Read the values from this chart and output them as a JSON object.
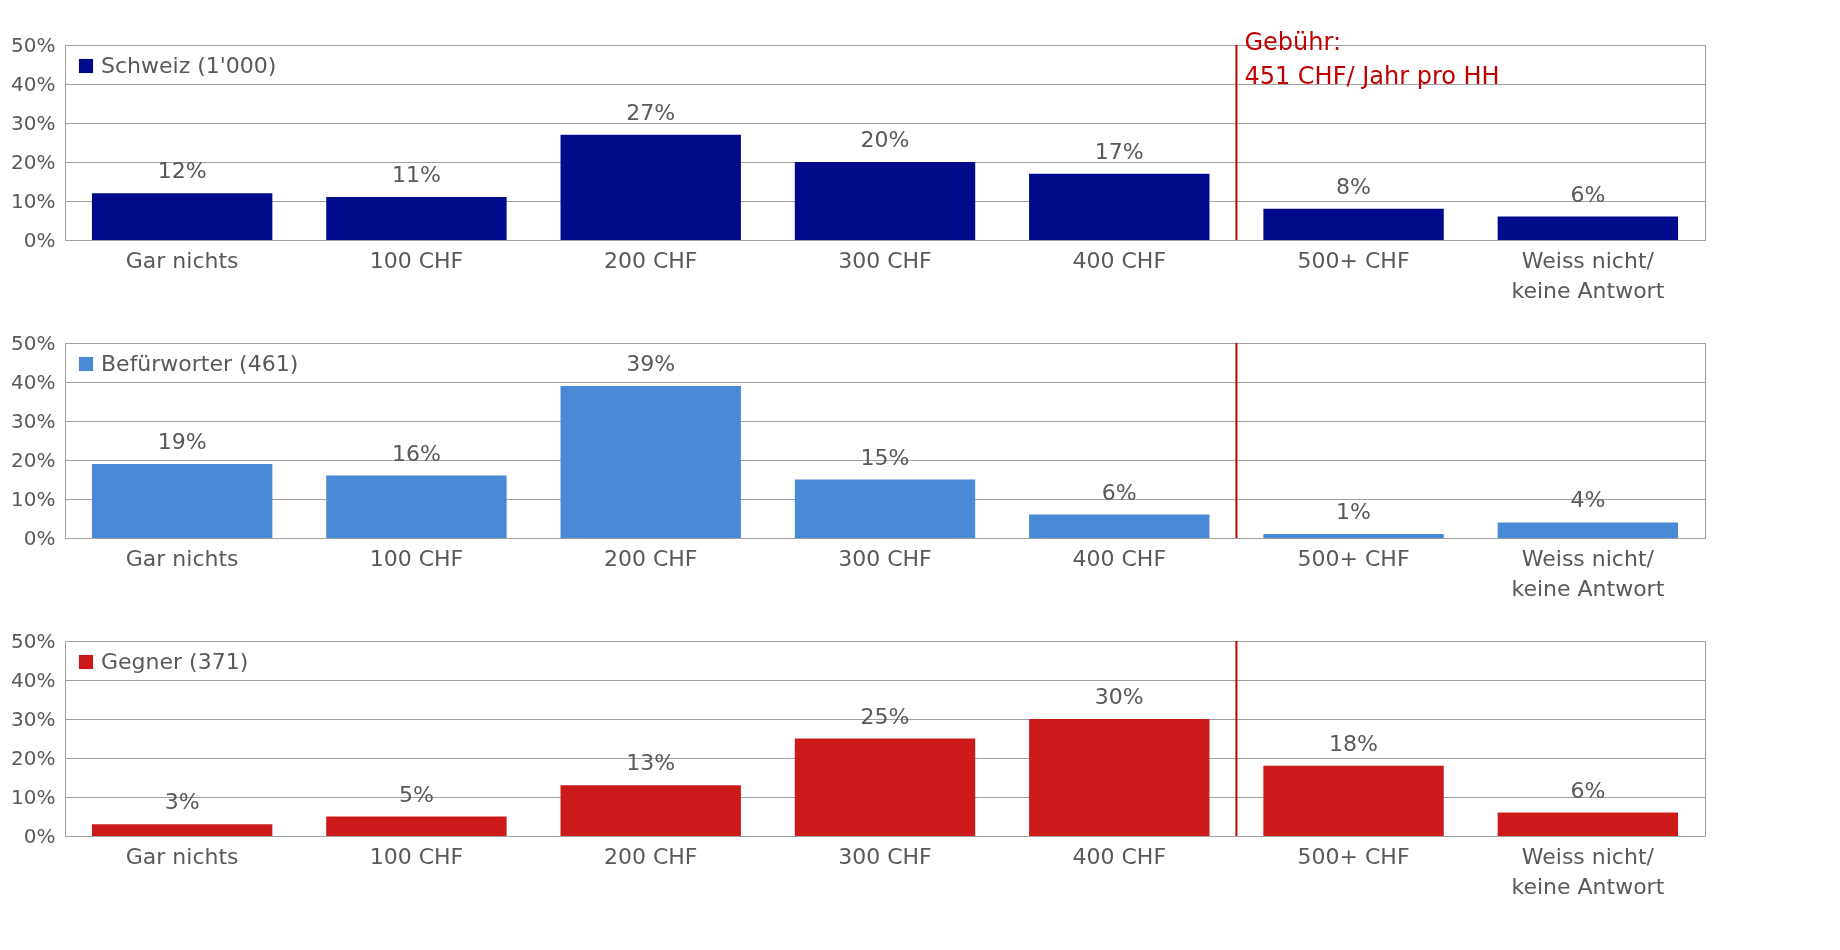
{
  "chart_data": [
    {
      "type": "bar",
      "categories": [
        "Gar nichts",
        "100 CHF",
        "200 CHF",
        "300 CHF",
        "400 CHF",
        "500+ CHF",
        "Weiss nicht/ keine Antwort"
      ],
      "series": [
        {
          "name": "Schweiz (1'000)",
          "color": "#000b8c",
          "values": [
            12,
            11,
            27,
            20,
            17,
            8,
            6
          ]
        }
      ],
      "ylim": [
        0,
        50
      ],
      "yticks": [
        {
          "value": 0,
          "label": "0%"
        },
        {
          "value": 10,
          "label": "10%"
        },
        {
          "value": 20,
          "label": "20%"
        },
        {
          "value": 30,
          "label": "30%"
        },
        {
          "value": 40,
          "label": "40%"
        },
        {
          "value": 50,
          "label": "50%"
        }
      ],
      "value_labels": [
        "12%",
        "11%",
        "27%",
        "20%",
        "17%",
        "8%",
        "6%"
      ],
      "grid": "y",
      "legend": "top left",
      "ref_lines": [
        {
          "axis": "x",
          "value": "500+ CHF",
          "label": "Gebühr: 451 CHF/ Jahr pro HH",
          "color": "#c00000"
        }
      ]
    },
    {
      "type": "bar",
      "categories": [
        "Gar nichts",
        "100 CHF",
        "200 CHF",
        "300 CHF",
        "400 CHF",
        "500+ CHF",
        "Weiss nicht/ keine Antwort"
      ],
      "series": [
        {
          "name": "Befürworter (461)",
          "color": "#4a89d6",
          "values": [
            19,
            16,
            39,
            15,
            6,
            1,
            4
          ]
        }
      ],
      "ylim": [
        0,
        50
      ],
      "yticks": [
        {
          "value": 0,
          "label": "0%"
        },
        {
          "value": 10,
          "label": "10%"
        },
        {
          "value": 20,
          "label": "20%"
        },
        {
          "value": 30,
          "label": "30%"
        },
        {
          "value": 40,
          "label": "40%"
        },
        {
          "value": 50,
          "label": "50%"
        }
      ],
      "value_labels": [
        "19%",
        "16%",
        "39%",
        "15%",
        "6%",
        "1%",
        "4%"
      ],
      "grid": "y",
      "legend": "top left",
      "ref_lines": [
        {
          "axis": "x",
          "value": "500+ CHF",
          "color": "#c00000"
        }
      ]
    },
    {
      "type": "bar",
      "categories": [
        "Gar nichts",
        "100 CHF",
        "200 CHF",
        "300 CHF",
        "400 CHF",
        "500+ CHF",
        "Weiss nicht/ keine Antwort"
      ],
      "series": [
        {
          "name": "Gegner (371)",
          "color": "#cc1a1a",
          "values": [
            3,
            5,
            13,
            25,
            30,
            18,
            6
          ]
        }
      ],
      "ylim": [
        0,
        50
      ],
      "yticks": [
        {
          "value": 0,
          "label": "0%"
        },
        {
          "value": 10,
          "label": "10%"
        },
        {
          "value": 20,
          "label": "20%"
        },
        {
          "value": 30,
          "label": "30%"
        },
        {
          "value": 40,
          "label": "40%"
        },
        {
          "value": 50,
          "label": "50%"
        }
      ],
      "value_labels": [
        "3%",
        "5%",
        "13%",
        "25%",
        "30%",
        "18%",
        "6%"
      ],
      "grid": "y",
      "legend": "top left",
      "ref_lines": [
        {
          "axis": "x",
          "value": "500+ CHF",
          "color": "#c00000"
        }
      ]
    }
  ]
}
